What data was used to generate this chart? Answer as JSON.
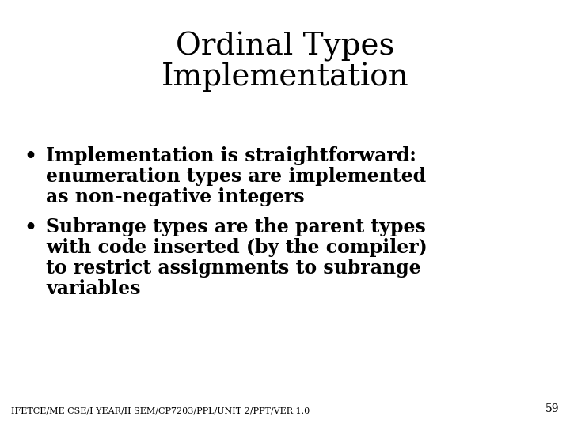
{
  "title_line1": "Ordinal Types",
  "title_line2": "Implementation",
  "bullet1_line1": "Implementation is straightforward:",
  "bullet1_line2": "enumeration types are implemented",
  "bullet1_line3": "as non-negative integers",
  "bullet2_line1": "Subrange types are the parent types",
  "bullet2_line2": "with code inserted (by the compiler)",
  "bullet2_line3": "to restrict assignments to subrange",
  "bullet2_line4": "variables",
  "footer": "IFETCE/ME CSE/I YEAR/II SEM/CP7203/PPL/UNIT 2/PPT/VER 1.0",
  "page_number": "59",
  "background_color": "#ffffff",
  "text_color": "#000000",
  "title_fontsize": 28,
  "bullet_fontsize": 17,
  "footer_fontsize": 8,
  "page_num_fontsize": 10
}
